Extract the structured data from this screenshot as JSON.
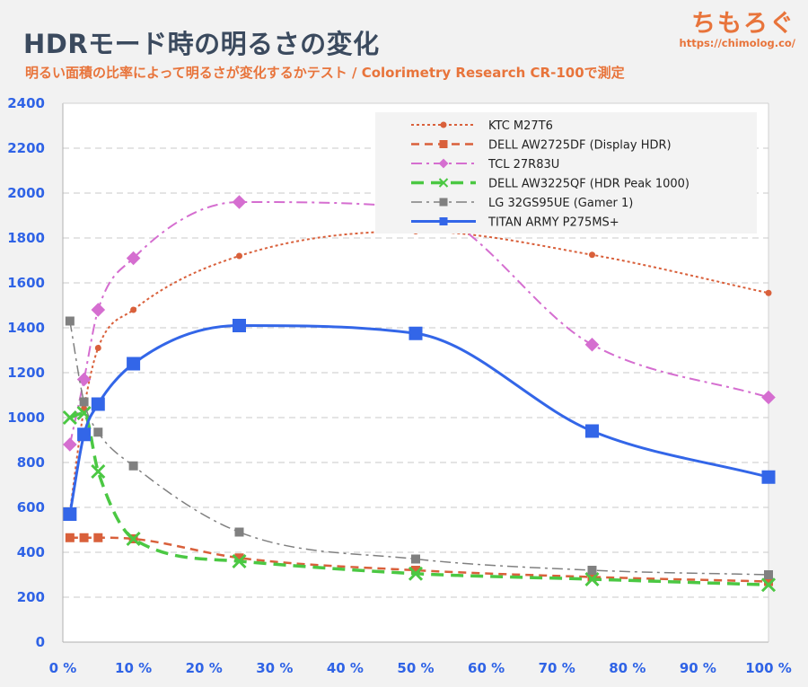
{
  "header": {
    "title": "HDRモード時の明るさの変化",
    "subtitle": "明るい面積の比率によって明るさが変化するかテスト / Colorimetry Research CR-100で測定"
  },
  "brand": {
    "name": "ちもろぐ",
    "url": "https://chimolog.co/"
  },
  "chart_data": {
    "type": "line",
    "title": "HDRモード時の明るさの変化",
    "xlabel": "",
    "ylabel": "",
    "xlim": [
      0,
      100
    ],
    "ylim": [
      0,
      2400
    ],
    "x_ticks": [
      0,
      10,
      20,
      30,
      40,
      50,
      60,
      70,
      80,
      90,
      100
    ],
    "x_tick_labels": [
      "0 %",
      "10 %",
      "20 %",
      "30 %",
      "40 %",
      "50 %",
      "60 %",
      "70 %",
      "80 %",
      "90 %",
      "100 %"
    ],
    "y_ticks": [
      0,
      200,
      400,
      600,
      800,
      1000,
      1200,
      1400,
      1600,
      1800,
      2000,
      2200,
      2400
    ],
    "grid": "horizontal dashed",
    "legend_position": "top-right",
    "series": [
      {
        "name": "KTC M27T6",
        "color": "#d9603b",
        "dash": "dotted",
        "marker": "circle",
        "x": [
          1,
          3,
          5,
          10,
          25,
          50,
          75,
          100
        ],
        "y": [
          580,
          1040,
          1310,
          1480,
          1720,
          1830,
          1725,
          1555
        ]
      },
      {
        "name": "DELL AW2725DF (Display HDR)",
        "color": "#d9603b",
        "dash": "dashed",
        "marker": "square",
        "x": [
          1,
          3,
          5,
          10,
          25,
          50,
          75,
          100
        ],
        "y": [
          465,
          465,
          465,
          460,
          375,
          320,
          290,
          270
        ]
      },
      {
        "name": "TCL 27R83U",
        "color": "#d56ed0",
        "dash": "dashdot",
        "marker": "diamond",
        "x": [
          1,
          3,
          5,
          10,
          25,
          50,
          75,
          100
        ],
        "y": [
          880,
          1170,
          1480,
          1710,
          1960,
          1935,
          1325,
          1090
        ]
      },
      {
        "name": "DELL AW3225QF (HDR Peak 1000)",
        "color": "#4bc843",
        "dash": "longdash",
        "marker": "x",
        "x": [
          1,
          3,
          5,
          10,
          25,
          50,
          75,
          100
        ],
        "y": [
          1000,
          1020,
          760,
          460,
          360,
          305,
          280,
          255
        ]
      },
      {
        "name": "LG 32GS95UE (Gamer 1)",
        "color": "#808080",
        "dash": "dashdot",
        "marker": "square",
        "x": [
          1,
          3,
          5,
          10,
          25,
          50,
          75,
          100
        ],
        "y": [
          1430,
          1070,
          935,
          785,
          490,
          370,
          320,
          300
        ]
      },
      {
        "name": "TITAN ARMY P275MS+",
        "color": "#3366e8",
        "dash": "solid",
        "marker": "square",
        "x": [
          1,
          3,
          5,
          10,
          25,
          50,
          75,
          100
        ],
        "y": [
          570,
          925,
          1060,
          1240,
          1410,
          1375,
          940,
          735
        ]
      }
    ]
  }
}
